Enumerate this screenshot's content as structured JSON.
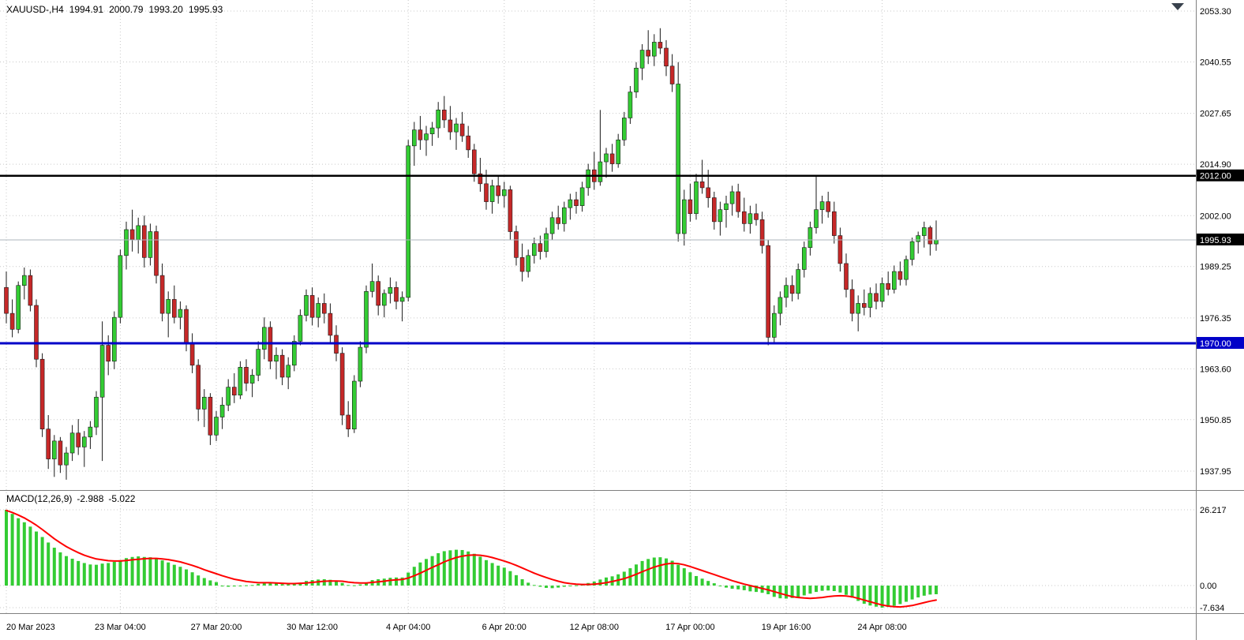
{
  "window": {
    "symbol_period": "XAUUSD-,H4",
    "ohlc_readout": {
      "open": "1994.91",
      "high": "2000.79",
      "low": "1993.20",
      "close": "1995.93"
    }
  },
  "price_axis": {
    "top_price": 2053.3,
    "bottom_price": 1937.95,
    "ticks": [
      "2053.30",
      "2040.55",
      "2027.65",
      "2014.90",
      "2002.00",
      "1989.25",
      "1976.35",
      "1963.60",
      "1950.85",
      "1937.95"
    ],
    "tags": [
      {
        "text": "2012.00",
        "price": 2012.0,
        "bg": "#000000"
      },
      {
        "text": "1995.93",
        "price": 1995.93,
        "bg": "#000000"
      },
      {
        "text": "1970.00",
        "price": 1970.0,
        "bg": "#0000C8"
      }
    ]
  },
  "time_axis": {
    "labels": [
      {
        "text": "20 Mar 2023",
        "bar": 0
      },
      {
        "text": "23 Mar 04:00",
        "bar": 19
      },
      {
        "text": "27 Mar 20:00",
        "bar": 35
      },
      {
        "text": "30 Mar 12:00",
        "bar": 51
      },
      {
        "text": "4 Apr 04:00",
        "bar": 67
      },
      {
        "text": "6 Apr 20:00",
        "bar": 83
      },
      {
        "text": "12 Apr 08:00",
        "bar": 98
      },
      {
        "text": "17 Apr 00:00",
        "bar": 114
      },
      {
        "text": "19 Apr 16:00",
        "bar": 130
      },
      {
        "text": "24 Apr 08:00",
        "bar": 146
      }
    ]
  },
  "hlines": [
    {
      "name": "resistance-line",
      "price": 2012.0,
      "color": "#000000",
      "width": 2.5
    },
    {
      "name": "support-line",
      "price": 1970.0,
      "color": "#0000C8",
      "width": 3
    },
    {
      "name": "bid-price-line",
      "price": 1995.93,
      "color": "#AEB6BC",
      "width": 1
    }
  ],
  "macd_panel": {
    "label": "MACD(12,26,9)",
    "value_main": "-2.988",
    "value_signal": "-5.022",
    "axis_ticks": [
      "26.217",
      "0.00",
      "-7.634"
    ],
    "max": 26.217,
    "min": -7.634
  },
  "colors": {
    "bull": "#33CC33",
    "bear": "#C62828",
    "wick": "#1A1A1A",
    "signal_line": "#FF0000",
    "grid": "#C9C9C9",
    "axis_text": "#000000",
    "tag_text": "#FFFFFF",
    "pane_border": "#808080",
    "shift_marker": "#39424D"
  },
  "chart_data": {
    "type": "candlestick",
    "title": "XAUUSD-,H4",
    "xlabel_range": [
      "20 Mar 2023",
      "24 Apr 08:00"
    ],
    "price_range": [
      1937.95,
      2053.3
    ],
    "candles": [
      [
        1984.0,
        1988.0,
        1975.0,
        1977.5
      ],
      [
        1977.5,
        1981.0,
        1971.5,
        1973.5
      ],
      [
        1973.5,
        1985.5,
        1972.5,
        1984.5
      ],
      [
        1984.5,
        1989.0,
        1981.0,
        1987.0
      ],
      [
        1987.0,
        1988.5,
        1978.0,
        1979.5
      ],
      [
        1979.5,
        1981.0,
        1964.0,
        1966.0
      ],
      [
        1966.0,
        1967.5,
        1946.5,
        1948.5
      ],
      [
        1948.5,
        1952.0,
        1938.5,
        1941.0
      ],
      [
        1941.0,
        1947.0,
        1936.5,
        1945.5
      ],
      [
        1945.5,
        1946.5,
        1937.5,
        1939.5
      ],
      [
        1939.5,
        1944.0,
        1935.8,
        1942.5
      ],
      [
        1942.5,
        1949.5,
        1940.5,
        1947.5
      ],
      [
        1947.5,
        1951.0,
        1942.0,
        1944.0
      ],
      [
        1944.0,
        1948.0,
        1939.0,
        1946.5
      ],
      [
        1946.5,
        1950.5,
        1943.5,
        1949.0
      ],
      [
        1949.0,
        1958.0,
        1947.0,
        1956.5
      ],
      [
        1956.5,
        1975.5,
        1940.5,
        1969.5
      ],
      [
        1969.5,
        1972.0,
        1962.0,
        1965.5
      ],
      [
        1965.5,
        1978.0,
        1963.5,
        1976.5
      ],
      [
        1976.5,
        1993.5,
        1975.0,
        1992.0
      ],
      [
        1992.0,
        2000.5,
        1988.5,
        1998.5
      ],
      [
        1998.5,
        2003.5,
        1993.0,
        1996.0
      ],
      [
        1996.0,
        2001.5,
        1992.5,
        1999.5
      ],
      [
        1999.5,
        2002.0,
        1989.0,
        1991.5
      ],
      [
        1991.5,
        2000.0,
        1989.5,
        1998.0
      ],
      [
        1998.0,
        1999.5,
        1985.0,
        1987.0
      ],
      [
        1987.0,
        1990.0,
        1975.5,
        1977.5
      ],
      [
        1977.5,
        1983.0,
        1971.5,
        1981.0
      ],
      [
        1981.0,
        1984.5,
        1975.0,
        1976.5
      ],
      [
        1976.5,
        1980.5,
        1973.5,
        1978.5
      ],
      [
        1978.5,
        1979.5,
        1968.0,
        1970.0
      ],
      [
        1970.0,
        1972.5,
        1962.5,
        1964.5
      ],
      [
        1964.5,
        1966.0,
        1950.5,
        1953.5
      ],
      [
        1953.5,
        1958.5,
        1949.0,
        1956.5
      ],
      [
        1956.5,
        1957.5,
        1944.5,
        1947.0
      ],
      [
        1947.0,
        1953.0,
        1945.5,
        1951.5
      ],
      [
        1951.5,
        1956.5,
        1948.5,
        1954.5
      ],
      [
        1954.5,
        1961.0,
        1953.0,
        1959.0
      ],
      [
        1959.0,
        1962.5,
        1955.0,
        1957.0
      ],
      [
        1957.0,
        1965.5,
        1956.0,
        1964.0
      ],
      [
        1964.0,
        1966.0,
        1958.0,
        1960.0
      ],
      [
        1960.0,
        1963.5,
        1956.5,
        1962.0
      ],
      [
        1962.0,
        1970.5,
        1960.5,
        1968.5
      ],
      [
        1968.5,
        1976.5,
        1966.0,
        1974.0
      ],
      [
        1974.0,
        1975.5,
        1963.5,
        1965.5
      ],
      [
        1965.5,
        1969.0,
        1961.0,
        1967.0
      ],
      [
        1967.0,
        1968.5,
        1959.5,
        1961.5
      ],
      [
        1961.5,
        1966.5,
        1958.5,
        1964.5
      ],
      [
        1964.5,
        1972.0,
        1963.0,
        1970.5
      ],
      [
        1970.5,
        1978.5,
        1969.5,
        1977.0
      ],
      [
        1977.0,
        1983.5,
        1975.5,
        1982.0
      ],
      [
        1982.0,
        1984.0,
        1974.5,
        1976.5
      ],
      [
        1976.5,
        1981.5,
        1974.0,
        1980.0
      ],
      [
        1980.0,
        1982.5,
        1975.0,
        1977.5
      ],
      [
        1977.5,
        1980.0,
        1970.0,
        1972.0
      ],
      [
        1972.0,
        1974.5,
        1965.5,
        1967.5
      ],
      [
        1967.5,
        1969.0,
        1949.5,
        1952.0
      ],
      [
        1952.0,
        1955.5,
        1946.5,
        1948.5
      ],
      [
        1948.5,
        1962.0,
        1947.5,
        1960.5
      ],
      [
        1960.5,
        1970.5,
        1959.0,
        1969.0
      ],
      [
        1969.0,
        1984.5,
        1967.5,
        1983.0
      ],
      [
        1983.0,
        1990.0,
        1981.5,
        1985.5
      ],
      [
        1985.5,
        1987.0,
        1977.0,
        1979.5
      ],
      [
        1979.5,
        1983.5,
        1976.5,
        1982.5
      ],
      [
        1982.5,
        1986.5,
        1980.0,
        1984.0
      ],
      [
        1984.0,
        1985.5,
        1978.5,
        1980.5
      ],
      [
        1980.5,
        1983.0,
        1975.5,
        1981.5
      ],
      [
        1981.5,
        2021.0,
        1980.5,
        2019.5
      ],
      [
        2019.5,
        2025.5,
        2014.5,
        2023.5
      ],
      [
        2023.5,
        2027.0,
        2018.5,
        2021.0
      ],
      [
        2021.0,
        2024.5,
        2017.0,
        2022.5
      ],
      [
        2022.5,
        2025.5,
        2019.5,
        2024.0
      ],
      [
        2024.0,
        2030.5,
        2021.5,
        2028.5
      ],
      [
        2028.5,
        2032.0,
        2024.0,
        2026.0
      ],
      [
        2026.0,
        2029.5,
        2021.0,
        2023.0
      ],
      [
        2023.0,
        2026.5,
        2018.5,
        2025.0
      ],
      [
        2025.0,
        2028.0,
        2020.5,
        2022.0
      ],
      [
        2022.0,
        2024.5,
        2016.5,
        2018.5
      ],
      [
        2018.5,
        2020.0,
        2010.5,
        2012.5
      ],
      [
        2012.5,
        2016.5,
        2008.0,
        2010.0
      ],
      [
        2010.0,
        2013.5,
        2003.5,
        2005.5
      ],
      [
        2005.5,
        2011.0,
        2002.5,
        2009.5
      ],
      [
        2009.5,
        2012.0,
        2005.0,
        2007.0
      ],
      [
        2007.0,
        2010.5,
        2004.0,
        2008.5
      ],
      [
        2008.5,
        2009.5,
        1996.0,
        1998.0
      ],
      [
        1998.0,
        1999.5,
        1989.5,
        1991.5
      ],
      [
        1991.5,
        1995.0,
        1985.5,
        1988.0
      ],
      [
        1988.0,
        1993.5,
        1986.5,
        1992.0
      ],
      [
        1992.0,
        1996.5,
        1990.0,
        1995.0
      ],
      [
        1995.0,
        1997.0,
        1991.0,
        1993.0
      ],
      [
        1993.0,
        1999.0,
        1991.5,
        1997.5
      ],
      [
        1997.5,
        2003.0,
        1996.0,
        2001.5
      ],
      [
        2001.5,
        2004.5,
        1998.5,
        2000.0
      ],
      [
        2000.0,
        2005.5,
        1998.0,
        2004.0
      ],
      [
        2004.0,
        2007.5,
        2001.0,
        2006.0
      ],
      [
        2006.0,
        2008.0,
        2002.5,
        2004.5
      ],
      [
        2004.5,
        2010.5,
        2003.0,
        2009.0
      ],
      [
        2009.0,
        2015.0,
        2007.0,
        2013.5
      ],
      [
        2013.5,
        2018.0,
        2008.5,
        2010.5
      ],
      [
        2010.5,
        2028.5,
        2009.5,
        2015.5
      ],
      [
        2015.5,
        2019.0,
        2011.5,
        2017.5
      ],
      [
        2017.5,
        2020.0,
        2013.0,
        2015.0
      ],
      [
        2015.0,
        2022.5,
        2014.0,
        2021.0
      ],
      [
        2021.0,
        2028.0,
        2019.5,
        2026.5
      ],
      [
        2026.5,
        2034.5,
        2025.0,
        2033.0
      ],
      [
        2033.0,
        2040.5,
        2031.5,
        2039.0
      ],
      [
        2039.0,
        2045.0,
        2036.0,
        2043.5
      ],
      [
        2043.5,
        2048.5,
        2040.0,
        2042.0
      ],
      [
        2042.0,
        2047.5,
        2039.5,
        2045.5
      ],
      [
        2045.5,
        2049.0,
        2042.5,
        2044.0
      ],
      [
        2044.0,
        2046.0,
        2037.0,
        2039.5
      ],
      [
        2039.5,
        2042.5,
        2033.0,
        2035.0
      ],
      [
        2035.0,
        2040.5,
        1995.5,
        1997.5,
        "up"
      ],
      [
        1997.5,
        2008.5,
        1994.5,
        2006.0
      ],
      [
        2006.0,
        2010.0,
        2000.5,
        2002.5
      ],
      [
        2002.5,
        2012.5,
        2001.0,
        2010.5
      ],
      [
        2010.5,
        2016.0,
        2007.5,
        2009.0
      ],
      [
        2009.0,
        2013.5,
        2004.0,
        2006.5
      ],
      [
        2006.5,
        2008.0,
        1998.5,
        2000.5
      ],
      [
        2000.5,
        2005.5,
        1997.0,
        2003.5
      ],
      [
        2003.5,
        2007.0,
        1999.0,
        2005.0
      ],
      [
        2005.0,
        2009.5,
        2002.0,
        2008.0
      ],
      [
        2008.0,
        2010.0,
        2001.5,
        2003.0
      ],
      [
        2003.0,
        2006.5,
        1998.0,
        2000.0
      ],
      [
        2000.0,
        2004.5,
        1997.5,
        2002.5
      ],
      [
        2002.5,
        2005.0,
        1999.5,
        2001.0
      ],
      [
        2001.0,
        2003.0,
        1992.5,
        1994.5
      ],
      [
        1994.5,
        1996.0,
        1969.5,
        1971.5
      ],
      [
        1971.5,
        1979.5,
        1970.0,
        1977.5
      ],
      [
        1977.5,
        1983.0,
        1974.5,
        1981.5
      ],
      [
        1981.5,
        1986.5,
        1979.0,
        1984.5
      ],
      [
        1984.5,
        1987.0,
        1980.5,
        1982.5
      ],
      [
        1982.5,
        1990.0,
        1981.0,
        1988.5
      ],
      [
        1988.5,
        1995.5,
        1986.5,
        1994.0
      ],
      [
        1994.0,
        2000.5,
        1992.0,
        1999.0
      ],
      [
        1999.0,
        2012.0,
        1997.5,
        2003.5
      ],
      [
        2003.5,
        2007.0,
        2000.0,
        2005.5
      ],
      [
        2005.5,
        2008.0,
        2001.5,
        2003.0
      ],
      [
        2003.0,
        2005.5,
        1995.0,
        1997.0
      ],
      [
        1997.0,
        1999.0,
        1988.0,
        1990.0
      ],
      [
        1990.0,
        1992.5,
        1981.5,
        1983.5
      ],
      [
        1983.5,
        1986.0,
        1975.5,
        1977.5
      ],
      [
        1977.5,
        1982.0,
        1973.0,
        1980.0
      ],
      [
        1980.0,
        1983.5,
        1977.0,
        1979.0
      ],
      [
        1979.0,
        1984.0,
        1976.5,
        1982.5
      ],
      [
        1982.5,
        1985.0,
        1978.5,
        1980.5
      ],
      [
        1980.5,
        1986.5,
        1979.0,
        1985.0
      ],
      [
        1985.0,
        1988.0,
        1982.0,
        1983.5
      ],
      [
        1983.5,
        1989.5,
        1982.5,
        1988.0
      ],
      [
        1988.0,
        1990.5,
        1984.5,
        1986.0
      ],
      [
        1986.0,
        1992.0,
        1984.5,
        1991.0
      ],
      [
        1991.0,
        1996.5,
        1989.5,
        1995.5
      ],
      [
        1995.5,
        1998.0,
        1992.5,
        1997.0
      ],
      [
        1997.0,
        2000.5,
        1994.0,
        1999.0
      ],
      [
        1999.0,
        1999.5,
        1992.0,
        1994.91
      ],
      [
        1994.91,
        2000.79,
        1993.2,
        1995.93
      ]
    ],
    "macd": {
      "type": "macd-histogram",
      "hist": [
        26.217,
        24.8,
        23.3,
        21.9,
        20.4,
        18.7,
        16.8,
        14.9,
        13.1,
        11.5,
        10.2,
        9.3,
        8.5,
        7.8,
        7.3,
        7.2,
        7.6,
        7.8,
        8.2,
        8.8,
        9.5,
        9.9,
        10.1,
        9.9,
        9.8,
        9.4,
        8.7,
        8.0,
        7.2,
        6.5,
        5.6,
        4.6,
        3.5,
        2.6,
        1.8,
        1.2,
        -0.3,
        -0.4,
        -0.3,
        -0.2,
        0.1,
        0.2,
        0.6,
        0.9,
        0.8,
        0.7,
        0.5,
        0.4,
        0.6,
        1.0,
        1.6,
        1.9,
        2.1,
        2.2,
        2.0,
        1.6,
        0.9,
        0.2,
        0.1,
        0.4,
        1.1,
        1.9,
        2.2,
        2.4,
        2.7,
        2.8,
        2.8,
        4.5,
        6.5,
        8.0,
        9.2,
        10.2,
        11.2,
        11.9,
        12.2,
        12.4,
        12.3,
        11.8,
        11.0,
        10.0,
        8.8,
        7.8,
        6.9,
        6.2,
        5.0,
        3.6,
        2.2,
        1.0,
        0.2,
        -0.4,
        -0.8,
        -0.9,
        -0.7,
        -0.4,
        -0.1,
        0.1,
        0.4,
        0.9,
        1.4,
        2.1,
        2.8,
        3.2,
        3.9,
        4.8,
        6.0,
        7.3,
        8.5,
        9.2,
        9.7,
        9.8,
        9.4,
        8.6,
        7.2,
        6.0,
        4.6,
        3.3,
        2.4,
        1.6,
        0.8,
        0.0,
        -0.7,
        -1.1,
        -1.3,
        -1.6,
        -2.0,
        -2.2,
        -2.5,
        -3.0,
        -3.9,
        -4.4,
        -4.5,
        -4.3,
        -4.0,
        -3.4,
        -2.8,
        -2.2,
        -1.8,
        -1.7,
        -1.9,
        -2.4,
        -3.2,
        -4.2,
        -5.3,
        -6.3,
        -6.9,
        -7.3,
        -7.634,
        -7.4,
        -7.0,
        -6.4,
        -5.6,
        -4.8,
        -4.1,
        -3.5,
        -3.1,
        -2.988
      ],
      "signal": [
        26.0,
        25.3,
        24.4,
        23.4,
        22.2,
        20.9,
        19.4,
        17.8,
        16.2,
        14.8,
        13.5,
        12.4,
        11.4,
        10.5,
        9.8,
        9.2,
        8.9,
        8.6,
        8.5,
        8.5,
        8.7,
        8.9,
        9.1,
        9.3,
        9.4,
        9.4,
        9.2,
        9.0,
        8.6,
        8.2,
        7.6,
        7.0,
        6.3,
        5.5,
        4.8,
        4.1,
        3.4,
        2.8,
        2.2,
        1.8,
        1.4,
        1.2,
        1.0,
        1.0,
        1.0,
        0.9,
        0.8,
        0.7,
        0.7,
        0.8,
        0.9,
        1.1,
        1.3,
        1.5,
        1.6,
        1.6,
        1.5,
        1.2,
        1.0,
        0.9,
        0.9,
        1.1,
        1.3,
        1.5,
        1.8,
        2.0,
        2.1,
        2.6,
        3.4,
        4.3,
        5.3,
        6.3,
        7.2,
        8.2,
        9.0,
        9.7,
        10.2,
        10.5,
        10.6,
        10.5,
        10.2,
        9.7,
        9.1,
        8.5,
        7.8,
        7.0,
        6.1,
        5.2,
        4.3,
        3.5,
        2.8,
        2.1,
        1.5,
        1.0,
        0.7,
        0.5,
        0.4,
        0.4,
        0.5,
        0.7,
        1.0,
        1.4,
        1.9,
        2.4,
        3.1,
        3.9,
        4.8,
        5.6,
        6.4,
        7.0,
        7.5,
        7.7,
        7.6,
        7.2,
        6.6,
        5.9,
        5.2,
        4.5,
        3.8,
        3.1,
        2.4,
        1.7,
        1.1,
        0.5,
        0.0,
        -0.5,
        -1.0,
        -1.5,
        -2.1,
        -2.7,
        -3.3,
        -3.8,
        -4.1,
        -4.3,
        -4.4,
        -4.3,
        -4.1,
        -3.8,
        -3.6,
        -3.5,
        -3.6,
        -3.9,
        -4.4,
        -5.0,
        -5.6,
        -6.2,
        -6.7,
        -7.1,
        -7.3,
        -7.4,
        -7.2,
        -6.9,
        -6.4,
        -5.9,
        -5.4,
        -5.022
      ]
    }
  }
}
